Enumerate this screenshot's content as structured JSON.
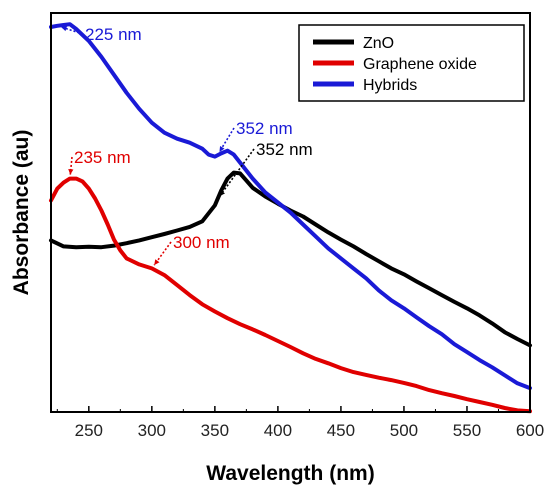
{
  "chart_data": {
    "type": "line",
    "xlabel": "Wavelength (nm)",
    "ylabel": "Absorbance (au)",
    "xlim": [
      220,
      600
    ],
    "ylim": [
      0,
      1
    ],
    "x_ticks": [
      250,
      300,
      350,
      400,
      450,
      500,
      550,
      600
    ],
    "y_ticks_labeled": false,
    "legend_position": "top-right",
    "series": [
      {
        "name": "ZnO",
        "color": "#000000",
        "x": [
          220,
          230,
          240,
          250,
          260,
          270,
          280,
          290,
          300,
          310,
          320,
          330,
          340,
          350,
          355,
          360,
          365,
          370,
          375,
          380,
          390,
          400,
          410,
          420,
          430,
          440,
          450,
          460,
          470,
          480,
          490,
          500,
          510,
          520,
          530,
          540,
          550,
          560,
          570,
          580,
          590,
          600
        ],
        "y": [
          0.43,
          0.415,
          0.413,
          0.414,
          0.413,
          0.417,
          0.423,
          0.43,
          0.438,
          0.446,
          0.455,
          0.464,
          0.478,
          0.518,
          0.555,
          0.585,
          0.6,
          0.598,
          0.58,
          0.562,
          0.54,
          0.522,
          0.505,
          0.49,
          0.47,
          0.45,
          0.432,
          0.415,
          0.396,
          0.378,
          0.36,
          0.345,
          0.327,
          0.31,
          0.293,
          0.276,
          0.26,
          0.242,
          0.222,
          0.2,
          0.183,
          0.167
        ]
      },
      {
        "name": "Graphene oxide",
        "color": "#e00000",
        "x": [
          220,
          225,
          230,
          235,
          240,
          245,
          250,
          255,
          260,
          265,
          270,
          275,
          280,
          290,
          300,
          310,
          320,
          330,
          340,
          350,
          360,
          370,
          380,
          390,
          400,
          410,
          420,
          430,
          440,
          450,
          460,
          470,
          480,
          490,
          500,
          510,
          520,
          530,
          540,
          550,
          560,
          570,
          580,
          590,
          600
        ],
        "y": [
          0.53,
          0.56,
          0.575,
          0.585,
          0.585,
          0.578,
          0.56,
          0.535,
          0.505,
          0.47,
          0.432,
          0.405,
          0.385,
          0.37,
          0.36,
          0.343,
          0.318,
          0.293,
          0.27,
          0.252,
          0.235,
          0.22,
          0.207,
          0.193,
          0.178,
          0.163,
          0.147,
          0.133,
          0.122,
          0.11,
          0.1,
          0.093,
          0.086,
          0.08,
          0.073,
          0.065,
          0.055,
          0.047,
          0.04,
          0.032,
          0.025,
          0.018,
          0.01,
          0.004,
          0.002
        ]
      },
      {
        "name": "Hybrids",
        "color": "#1a1ad6",
        "x": [
          220,
          225,
          230,
          235,
          240,
          250,
          260,
          270,
          280,
          290,
          300,
          310,
          320,
          330,
          340,
          345,
          350,
          355,
          360,
          365,
          370,
          380,
          390,
          400,
          410,
          420,
          430,
          440,
          450,
          460,
          470,
          480,
          490,
          500,
          510,
          520,
          530,
          540,
          550,
          560,
          570,
          580,
          590,
          600
        ],
        "y": [
          0.965,
          0.968,
          0.97,
          0.972,
          0.96,
          0.93,
          0.89,
          0.845,
          0.8,
          0.76,
          0.725,
          0.7,
          0.685,
          0.675,
          0.66,
          0.645,
          0.64,
          0.648,
          0.655,
          0.645,
          0.625,
          0.585,
          0.55,
          0.525,
          0.5,
          0.47,
          0.44,
          0.41,
          0.385,
          0.36,
          0.335,
          0.305,
          0.28,
          0.26,
          0.237,
          0.215,
          0.195,
          0.17,
          0.15,
          0.13,
          0.112,
          0.092,
          0.072,
          0.06
        ]
      }
    ],
    "annotations": [
      {
        "text": "225 nm",
        "color": "#1a1ad6",
        "series": "Hybrids",
        "x": 225
      },
      {
        "text": "352 nm",
        "color": "#1a1ad6",
        "series": "Hybrids",
        "x": 352
      },
      {
        "text": "352 nm",
        "color": "#000000",
        "series": "ZnO",
        "x": 352
      },
      {
        "text": "235 nm",
        "color": "#e00000",
        "series": "Graphene oxide",
        "x": 235
      },
      {
        "text": "300 nm",
        "color": "#e00000",
        "series": "Graphene oxide",
        "x": 300
      }
    ]
  }
}
